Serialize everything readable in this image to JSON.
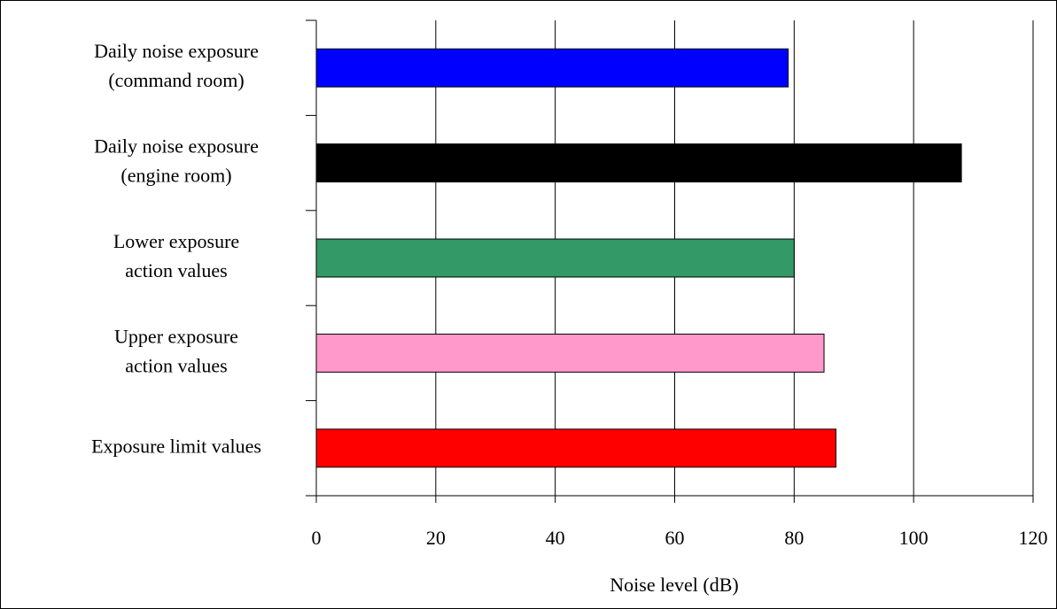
{
  "chart_data": {
    "type": "bar",
    "orientation": "horizontal",
    "categories": [
      [
        "Daily noise exposure",
        "(command room)"
      ],
      [
        "Daily noise exposure",
        "(engine room)"
      ],
      [
        "Lower exposure",
        "action values"
      ],
      [
        "Upper exposure",
        "action values"
      ],
      [
        "Exposure limit values"
      ]
    ],
    "values": [
      79,
      108,
      80,
      85,
      87
    ],
    "colors": [
      "#0000ff",
      "#000000",
      "#339966",
      "#ff99cc",
      "#ff0000"
    ],
    "x_label": "Noise level (dB)",
    "xlim": [
      0,
      120
    ],
    "xticks": [
      0,
      20,
      40,
      60,
      80,
      100,
      120
    ],
    "grid": true
  }
}
